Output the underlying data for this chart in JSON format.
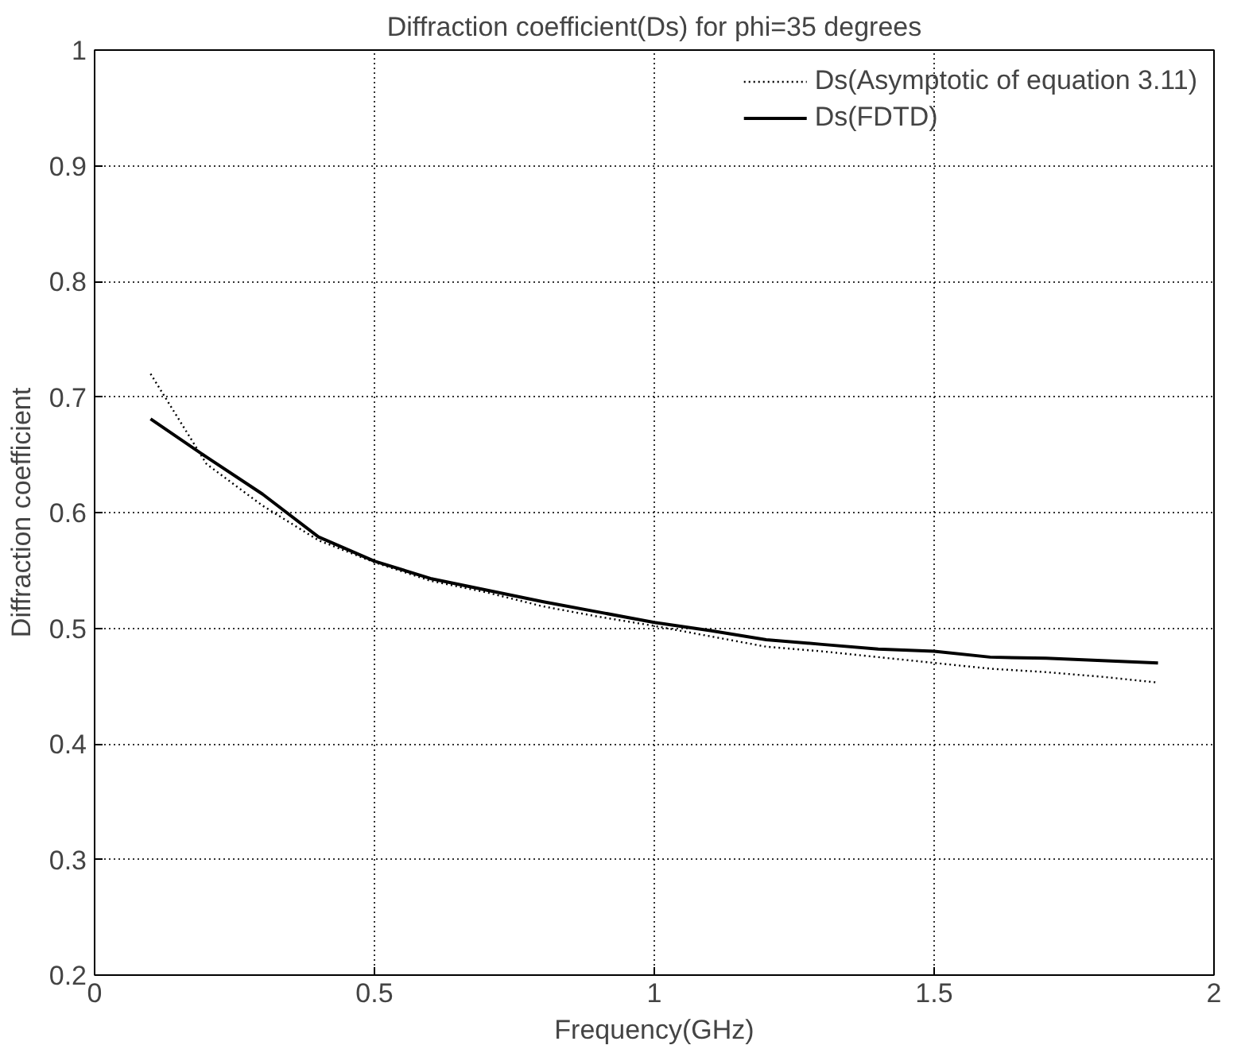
{
  "chart_data": {
    "type": "line",
    "title": "Diffraction coefficient(Ds) for phi=35 degrees",
    "xlabel": "Frequency(GHz)",
    "ylabel": "Diffraction coefficient",
    "xlim": [
      0,
      2
    ],
    "ylim": [
      0.2,
      1
    ],
    "xticks": [
      0,
      0.5,
      1,
      1.5,
      2
    ],
    "yticks": [
      0.2,
      0.3,
      0.4,
      0.5,
      0.6,
      0.7,
      0.8,
      0.9,
      1
    ],
    "grid": true,
    "legend": "top right",
    "x": [
      0.1,
      0.2,
      0.3,
      0.4,
      0.5,
      0.6,
      0.7,
      0.8,
      0.9,
      1.0,
      1.1,
      1.2,
      1.3,
      1.4,
      1.5,
      1.6,
      1.7,
      1.8,
      1.9
    ],
    "series": [
      {
        "name": "Ds(Asymptotic of equation 3.11)",
        "color": "#000000",
        "line_style": "dotted",
        "values": [
          0.72,
          0.642,
          0.606,
          0.576,
          0.557,
          0.541,
          0.531,
          0.519,
          0.51,
          0.502,
          0.493,
          0.484,
          0.48,
          0.475,
          0.47,
          0.465,
          0.462,
          0.458,
          0.453
        ]
      },
      {
        "name": "Ds(FDTD)",
        "color": "#000000",
        "line_style": "solid",
        "values": [
          0.681,
          0.648,
          0.616,
          0.579,
          0.558,
          0.543,
          0.533,
          0.523,
          0.514,
          0.505,
          0.498,
          0.49,
          0.486,
          0.482,
          0.48,
          0.475,
          0.474,
          0.472,
          0.47
        ]
      }
    ]
  }
}
